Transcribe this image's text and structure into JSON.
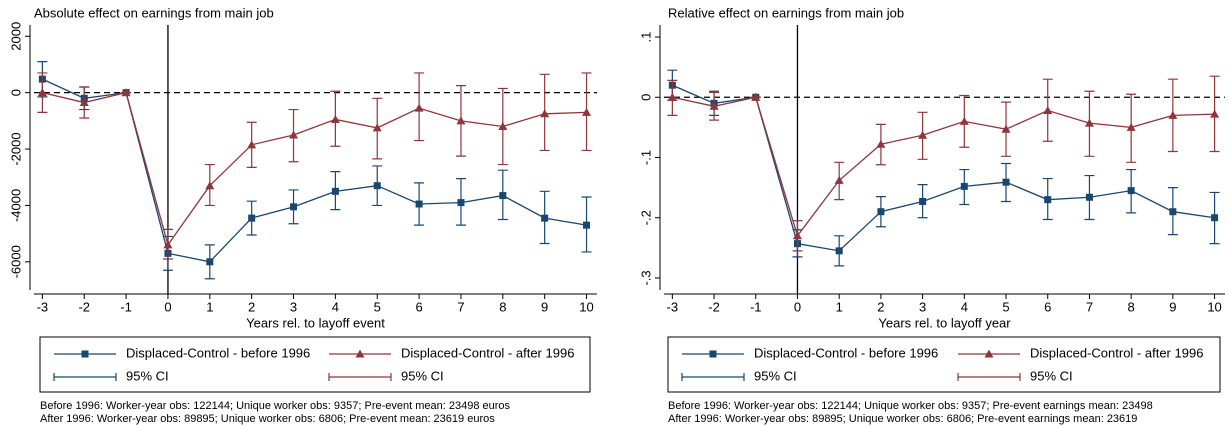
{
  "chart_data": [
    {
      "type": "line",
      "title": "Absolute effect on earnings from main job",
      "x_label": "Years rel. to layoff event",
      "x": [
        -3,
        -2,
        -1,
        0,
        1,
        2,
        3,
        4,
        5,
        6,
        7,
        8,
        9,
        10
      ],
      "xlim": [
        -3.2,
        10.25
      ],
      "xticks": [
        -3,
        -2,
        -1,
        0,
        1,
        2,
        3,
        4,
        5,
        6,
        7,
        8,
        9,
        10
      ],
      "ylim": [
        -7000,
        2400
      ],
      "yticks": [
        2000,
        0,
        -2000,
        -4000,
        -6000
      ],
      "vline": 0,
      "hline": 0,
      "series": [
        {
          "name": "Displaced-Control - before 1996",
          "ci_name": "95% CI",
          "color": "#1a476f",
          "marker": "square",
          "values": [
            480,
            -200,
            0,
            -5700,
            -6000,
            -4450,
            -4050,
            -3500,
            -3300,
            -3950,
            -3900,
            -3650,
            -4450,
            -4700
          ],
          "ci_low": [
            -150,
            -600,
            0,
            -6300,
            -6600,
            -5050,
            -4650,
            -4150,
            -4000,
            -4700,
            -4700,
            -4500,
            -5350,
            -5650
          ],
          "ci_high": [
            1100,
            200,
            0,
            -5100,
            -5400,
            -3850,
            -3450,
            -2800,
            -2600,
            -3200,
            -3050,
            -2750,
            -3500,
            -3700
          ]
        },
        {
          "name": "Displaced-Control - after 1996",
          "ci_name": "95% CI",
          "color": "#90353b",
          "marker": "triangle",
          "values": [
            0,
            -350,
            0,
            -5400,
            -3300,
            -1850,
            -1500,
            -950,
            -1250,
            -550,
            -1000,
            -1200,
            -750,
            -700
          ],
          "ci_low": [
            -700,
            -900,
            0,
            -5900,
            -4000,
            -2650,
            -2450,
            -1900,
            -2350,
            -1700,
            -2250,
            -2550,
            -2050,
            -2050
          ],
          "ci_high": [
            700,
            200,
            0,
            -4850,
            -2550,
            -1050,
            -600,
            50,
            -200,
            700,
            250,
            150,
            650,
            700
          ]
        }
      ],
      "notes": [
        "Before 1996: Worker-year obs: 122144; Unique worker obs: 9357; Pre-event mean: 23498 euros",
        "After 1996: Worker-year obs: 89895; Unique worker obs: 6806; Pre-event mean: 23619 euros"
      ]
    },
    {
      "type": "line",
      "title": "Relative effect on earnings from main job",
      "x_label": "Years rel. to layoff year",
      "x": [
        -3,
        -2,
        -1,
        0,
        1,
        2,
        3,
        4,
        5,
        6,
        7,
        8,
        9,
        10
      ],
      "xlim": [
        -3.2,
        10.25
      ],
      "xticks": [
        -3,
        -2,
        -1,
        0,
        1,
        2,
        3,
        4,
        5,
        6,
        7,
        8,
        9,
        10
      ],
      "ylim": [
        -0.32,
        0.12
      ],
      "yticks": [
        {
          "value": 0.1,
          "label": ".1"
        },
        0,
        {
          "value": -0.1,
          "label": "-.1"
        },
        {
          "value": -0.2,
          "label": "-.2"
        },
        {
          "value": -0.3,
          "label": "-.3"
        }
      ],
      "vline": 0,
      "hline": 0,
      "series": [
        {
          "name": "Displaced-Control - before 1996",
          "ci_name": "95% CI",
          "color": "#1a476f",
          "marker": "square",
          "values": [
            0.02,
            -0.01,
            0,
            -0.243,
            -0.255,
            -0.19,
            -0.173,
            -0.148,
            -0.141,
            -0.17,
            -0.166,
            -0.155,
            -0.19,
            -0.2
          ],
          "ci_low": [
            -0.005,
            -0.03,
            0,
            -0.265,
            -0.28,
            -0.215,
            -0.2,
            -0.178,
            -0.173,
            -0.203,
            -0.203,
            -0.192,
            -0.228,
            -0.243
          ],
          "ci_high": [
            0.045,
            0.01,
            0,
            -0.22,
            -0.23,
            -0.165,
            -0.145,
            -0.12,
            -0.11,
            -0.135,
            -0.13,
            -0.12,
            -0.15,
            -0.158
          ]
        },
        {
          "name": "Displaced-Control - after 1996",
          "ci_name": "95% CI",
          "color": "#90353b",
          "marker": "triangle",
          "values": [
            0,
            -0.015,
            0,
            -0.23,
            -0.138,
            -0.078,
            -0.063,
            -0.04,
            -0.053,
            -0.022,
            -0.043,
            -0.05,
            -0.03,
            -0.028
          ],
          "ci_low": [
            -0.03,
            -0.038,
            0,
            -0.255,
            -0.17,
            -0.112,
            -0.103,
            -0.083,
            -0.098,
            -0.073,
            -0.098,
            -0.108,
            -0.09,
            -0.09
          ],
          "ci_high": [
            0.028,
            0.008,
            0,
            -0.205,
            -0.108,
            -0.045,
            -0.025,
            0.003,
            -0.008,
            0.03,
            0.01,
            0.005,
            0.03,
            0.035
          ]
        }
      ],
      "notes": [
        "Before 1996: Worker-year obs: 122144; Unique worker obs: 9357; Pre-event earnings mean: 23498",
        "After 1996: Worker-year obs: 89895; Unique worker obs: 6806; Pre-event earnings mean: 23619"
      ]
    }
  ]
}
